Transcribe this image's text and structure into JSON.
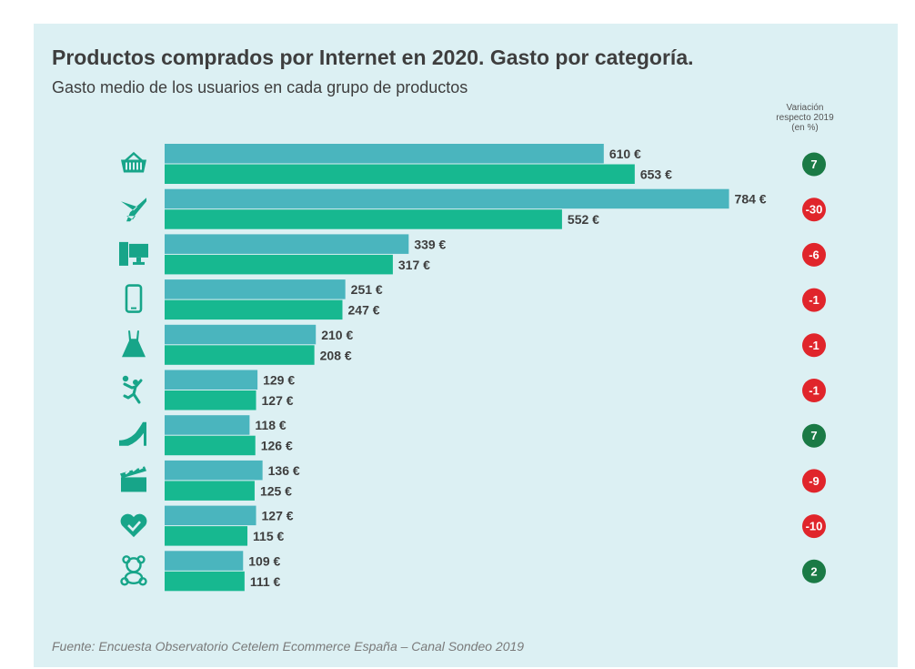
{
  "title": "Productos comprados por Internet en 2020. Gasto por categoría.",
  "subtitle": "Gasto medio de los usuarios en cada grupo de productos",
  "variation_header": [
    "Variación",
    "respecto 2019",
    "(en %)"
  ],
  "source": "Fuente: Encuesta Observatorio Cetelem Ecommerce España – Canal Sondeo 2019",
  "colors": {
    "bar_2019": "#4ab5be",
    "bar_2020": "#17b890",
    "badge_positive": "#1a7a45",
    "badge_negative": "#e0252b",
    "background": "#dcf0f3"
  },
  "chart_data": {
    "type": "bar",
    "orientation": "horizontal",
    "value_suffix": " €",
    "categories": [
      {
        "icon": "basket-icon",
        "v2019": 610,
        "v2020": 653,
        "variation": "7"
      },
      {
        "icon": "airplane-icon",
        "v2019": 784,
        "v2020": 552,
        "variation": "-30"
      },
      {
        "icon": "computer-icon",
        "v2019": 339,
        "v2020": 317,
        "variation": "-6"
      },
      {
        "icon": "smartphone-icon",
        "v2019": 251,
        "v2020": 247,
        "variation": "-1"
      },
      {
        "icon": "dress-icon",
        "v2019": 210,
        "v2020": 208,
        "variation": "-1"
      },
      {
        "icon": "sports-icon",
        "v2019": 129,
        "v2020": 127,
        "variation": "-1"
      },
      {
        "icon": "high-heel-icon",
        "v2019": 118,
        "v2020": 126,
        "variation": "7"
      },
      {
        "icon": "clapperboard-icon",
        "v2019": 136,
        "v2020": 125,
        "variation": "-9"
      },
      {
        "icon": "heart-check-icon",
        "v2019": 127,
        "v2020": 115,
        "variation": "-10"
      },
      {
        "icon": "teddy-bear-icon",
        "v2019": 109,
        "v2020": 111,
        "variation": "2"
      }
    ]
  }
}
